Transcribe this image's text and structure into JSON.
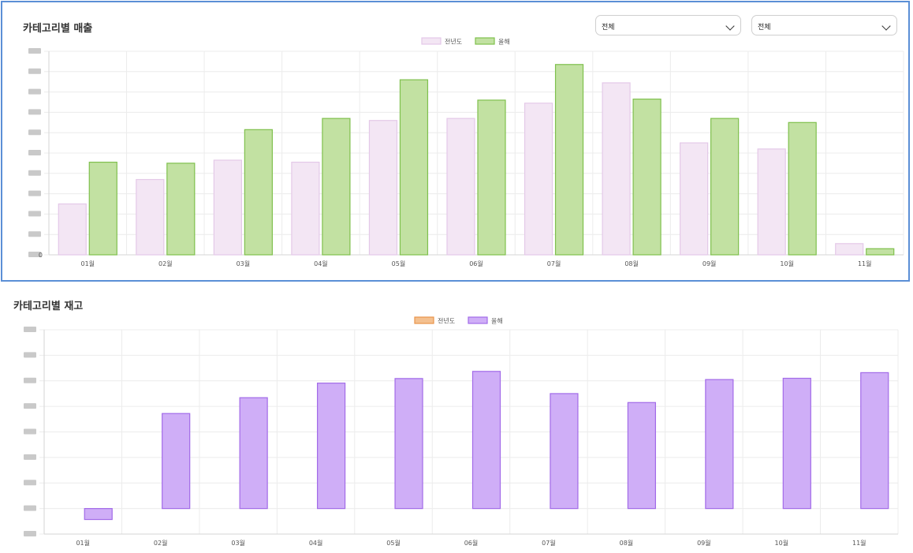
{
  "sales_panel": {
    "title": "카테고리별 매출",
    "filter_1": "전체",
    "filter_2": "전체"
  },
  "stock_panel": {
    "title": "카테고리별 재고"
  },
  "chart_data": [
    {
      "type": "bar",
      "name": "sales",
      "title": "카테고리별 매출",
      "categories": [
        "01월",
        "02월",
        "03월",
        "04월",
        "05월",
        "06월",
        "07월",
        "08월",
        "09월",
        "10월",
        "11월"
      ],
      "series": [
        {
          "name": "전년도",
          "values": [
            25,
            37,
            46.5,
            45.5,
            66,
            67,
            74.5,
            84.5,
            55,
            52,
            5.5
          ],
          "fill": "#f3e6f4",
          "stroke": "#e4c9e8"
        },
        {
          "name": "올해",
          "values": [
            45.5,
            45,
            61.5,
            67,
            86,
            76,
            93.5,
            76.5,
            67,
            65,
            3
          ],
          "fill": "#c2e1a2",
          "stroke": "#7fc04d"
        }
      ],
      "ylim": [
        0,
        100
      ],
      "ytick_count": 10,
      "bottom_tick_label": "0",
      "legend": "top-center",
      "xlabel": "",
      "ylabel": ""
    },
    {
      "type": "bar",
      "name": "stock",
      "title": "카테고리별 재고",
      "categories": [
        "01월",
        "02월",
        "03월",
        "04월",
        "05월",
        "06월",
        "07월",
        "08월",
        "09월",
        "10월",
        "11월"
      ],
      "series": [
        {
          "name": "전년도",
          "values": [
            0,
            0,
            0,
            0,
            0,
            0,
            0,
            0,
            0,
            0,
            0
          ],
          "fill": "#f4c08f",
          "stroke": "#e8944a"
        },
        {
          "name": "올해",
          "values": [
            -4.3,
            37.2,
            43.4,
            49.1,
            50.9,
            53.7,
            45,
            41.5,
            50.5,
            51,
            53.2
          ],
          "fill": "#cfaef7",
          "stroke": "#a26be8"
        }
      ],
      "ylim": [
        -10,
        70
      ],
      "ytick_count": 8,
      "legend": "top-center",
      "xlabel": "",
      "ylabel": ""
    }
  ]
}
